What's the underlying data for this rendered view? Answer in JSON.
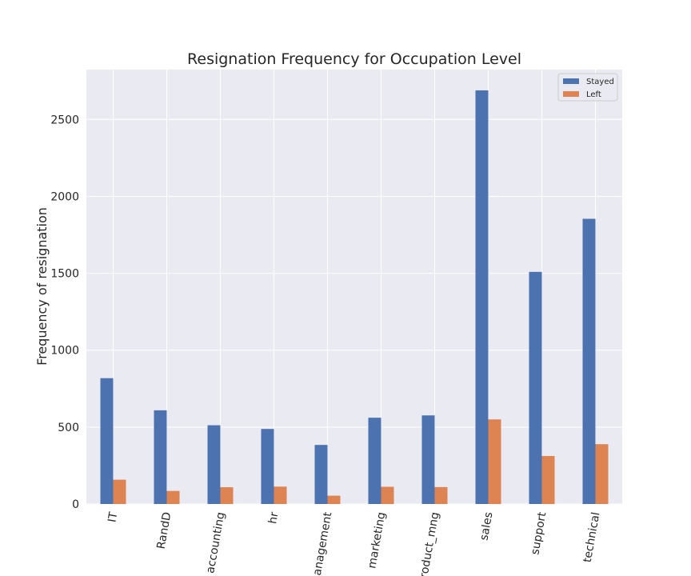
{
  "chart_data": {
    "type": "bar",
    "title": "Resignation Frequency for Occupation Level",
    "xlabel": "",
    "ylabel": "Frequency of resignation",
    "categories": [
      "IT",
      "RandD",
      "accounting",
      "hr",
      "management",
      "marketing",
      "product_mng",
      "sales",
      "support",
      "technical"
    ],
    "series": [
      {
        "name": "Stayed",
        "values": [
          818,
          609,
          512,
          488,
          384,
          561,
          576,
          2689,
          1509,
          1854
        ]
      },
      {
        "name": "Left",
        "values": [
          158,
          85,
          109,
          113,
          54,
          112,
          110,
          550,
          312,
          389
        ]
      }
    ],
    "yticks": [
      0,
      500,
      1000,
      1500,
      2000,
      2500
    ],
    "ylim": [
      0,
      2824
    ],
    "grid": true,
    "legend_position": "top-right",
    "colors": {
      "Stayed": "#4c72b0",
      "Left": "#dd8452",
      "background": "#eaeaf2",
      "grid": "#ffffff"
    }
  }
}
